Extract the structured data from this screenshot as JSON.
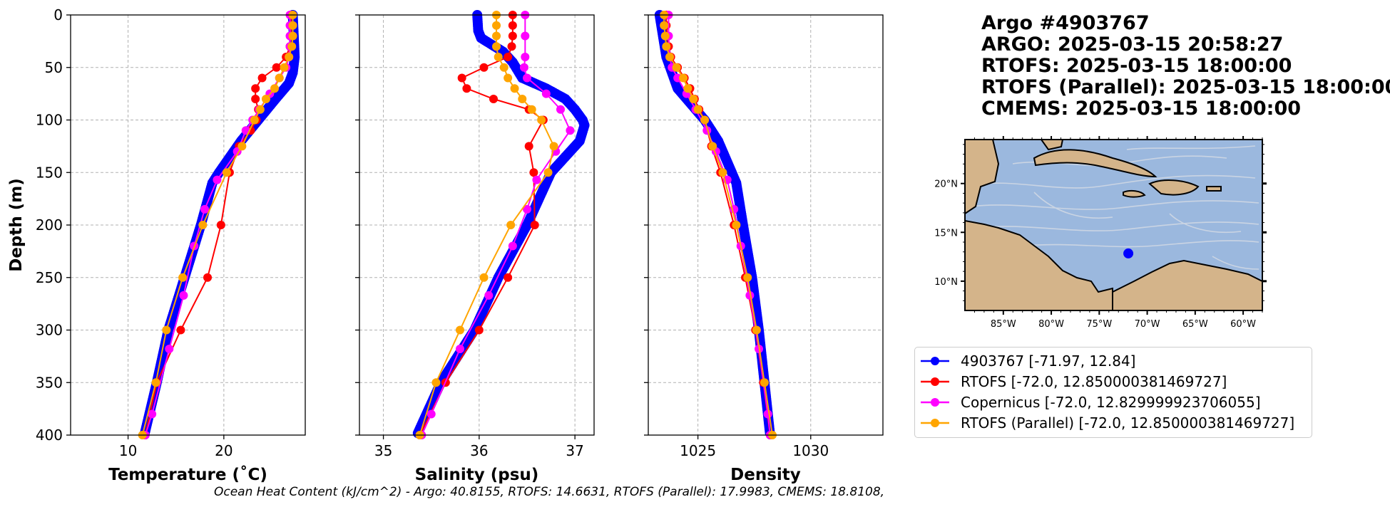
{
  "titles": [
    "Argo #4903767",
    "ARGO:  2025-03-15 20:58:27",
    "RTOFS: 2025-03-15 18:00:00",
    "RTOFS (Parallel): 2025-03-15 18:00:00",
    "CMEMS: 2025-03-15 18:00:00"
  ],
  "footer": "Ocean Heat Content (kJ/cm^2) - Argo: 40.8155,  RTOFS: 14.6631,  RTOFS (Parallel): 17.9983,  CMEMS: 18.8108,",
  "colors": {
    "argo": "#0000ff",
    "rtofs": "#ff0000",
    "copernicus": "#ff00ff",
    "parallel": "#ffa500",
    "ocean": "#9bb8de",
    "land": "#d4b48a"
  },
  "legend": [
    {
      "label": "4903767 [-71.97, 12.84]",
      "color": "#0000ff"
    },
    {
      "label": "RTOFS [-72.0, 12.850000381469727]",
      "color": "#ff0000"
    },
    {
      "label": "Copernicus [-72.0, 12.829999923706055]",
      "color": "#ff00ff"
    },
    {
      "label": "RTOFS (Parallel) [-72.0, 12.850000381469727]",
      "color": "#ffa500"
    }
  ],
  "chart_data": [
    {
      "type": "line",
      "xlabel": "Temperature (˚C)",
      "ylabel": "Depth (m)",
      "xlim": [
        4,
        28.5
      ],
      "ylim": [
        400,
        0
      ],
      "xticks": [
        10,
        20
      ],
      "yticks": [
        0,
        50,
        100,
        150,
        200,
        250,
        300,
        350,
        400
      ],
      "grid": true,
      "series": [
        {
          "name": "4903767 [-71.97, 12.84]",
          "color": "#0000ff",
          "depth": [
            0,
            20,
            40,
            55,
            65,
            80,
            100,
            120,
            150,
            160,
            200,
            250,
            300,
            350,
            400
          ],
          "values": [
            27.2,
            27.3,
            27.4,
            27.2,
            26.8,
            25.4,
            23.6,
            21.8,
            19.5,
            18.8,
            17.6,
            15.9,
            14.2,
            13.0,
            11.7
          ]
        },
        {
          "name": "RTOFS [-72.0, 12.850000381469727]",
          "color": "#ff0000",
          "depth": [
            0,
            10,
            20,
            30,
            40,
            50,
            60,
            70,
            80,
            90,
            100,
            110,
            125,
            150,
            200,
            250,
            300,
            350,
            400
          ],
          "values": [
            27.0,
            27.0,
            27.0,
            26.9,
            26.5,
            25.5,
            24.0,
            23.3,
            23.3,
            23.6,
            23.4,
            22.8,
            21.6,
            20.6,
            19.7,
            18.3,
            15.5,
            13.0,
            11.8
          ]
        },
        {
          "name": "Copernicus [-72.0, 12.829999923706055]",
          "color": "#ff00ff",
          "depth": [
            0,
            10,
            20,
            30,
            40,
            50,
            60,
            75,
            90,
            100,
            110,
            130,
            157,
            185,
            220,
            267,
            318,
            380,
            400
          ],
          "values": [
            26.9,
            26.9,
            26.9,
            26.9,
            26.8,
            26.5,
            25.8,
            24.8,
            23.7,
            23.0,
            22.3,
            21.4,
            19.3,
            18.0,
            16.9,
            15.8,
            14.3,
            12.5,
            11.8
          ]
        },
        {
          "name": "RTOFS (Parallel) [-72.0, 12.850000381469727]",
          "color": "#ffa500",
          "depth": [
            0,
            10,
            20,
            30,
            40,
            50,
            60,
            70,
            80,
            90,
            100,
            125,
            150,
            200,
            250,
            300,
            350,
            400
          ],
          "values": [
            27.2,
            27.2,
            27.2,
            27.1,
            26.8,
            26.3,
            25.8,
            25.3,
            24.4,
            23.8,
            23.2,
            21.9,
            20.3,
            17.8,
            15.7,
            14.0,
            12.9,
            11.5
          ]
        }
      ]
    },
    {
      "type": "line",
      "xlabel": "Salinity (psu)",
      "ylabel": "",
      "xlim": [
        34.75,
        37.2
      ],
      "ylim": [
        400,
        0
      ],
      "xticks": [
        35,
        36,
        37
      ],
      "yticks": [
        0,
        50,
        100,
        150,
        200,
        250,
        300,
        350,
        400
      ],
      "grid": true,
      "series": [
        {
          "name": "4903767 [-71.97, 12.84]",
          "color": "#0000ff",
          "depth": [
            0,
            15,
            22,
            35,
            45,
            60,
            70,
            80,
            90,
            100,
            105,
            120,
            135,
            150,
            200,
            250,
            300,
            350,
            400
          ],
          "values": [
            35.98,
            35.99,
            36.02,
            36.25,
            36.35,
            36.45,
            36.7,
            36.9,
            37.0,
            37.08,
            37.1,
            37.05,
            36.9,
            36.75,
            36.5,
            36.2,
            35.95,
            35.6,
            35.35
          ]
        },
        {
          "name": "RTOFS [-72.0, 12.850000381469727]",
          "color": "#ff0000",
          "depth": [
            0,
            10,
            20,
            30,
            40,
            50,
            60,
            70,
            80,
            90,
            100,
            125,
            150,
            200,
            250,
            300,
            350,
            400
          ],
          "values": [
            36.35,
            36.35,
            36.35,
            36.34,
            36.3,
            36.05,
            35.82,
            35.87,
            36.15,
            36.52,
            36.67,
            36.52,
            36.57,
            36.58,
            36.3,
            36.0,
            35.65,
            35.38
          ]
        },
        {
          "name": "Copernicus [-72.0, 12.829999923706055]",
          "color": "#ff00ff",
          "depth": [
            0,
            20,
            40,
            50,
            60,
            75,
            90,
            110,
            130,
            157,
            185,
            220,
            267,
            318,
            380,
            400
          ],
          "values": [
            36.48,
            36.48,
            36.48,
            36.47,
            36.5,
            36.7,
            36.85,
            36.95,
            36.8,
            36.6,
            36.5,
            36.35,
            36.1,
            35.8,
            35.5,
            35.4
          ]
        },
        {
          "name": "RTOFS (Parallel) [-72.0, 12.850000381469727]",
          "color": "#ffa500",
          "depth": [
            0,
            10,
            20,
            30,
            40,
            50,
            60,
            70,
            80,
            90,
            100,
            125,
            150,
            200,
            250,
            300,
            350,
            400
          ],
          "values": [
            36.18,
            36.18,
            36.18,
            36.18,
            36.2,
            36.26,
            36.3,
            36.37,
            36.45,
            36.55,
            36.65,
            36.78,
            36.72,
            36.33,
            36.05,
            35.8,
            35.55,
            35.38
          ]
        }
      ]
    },
    {
      "type": "line",
      "xlabel": "Density",
      "ylabel": "",
      "xlim": [
        1022.8,
        1033.2
      ],
      "ylim": [
        400,
        0
      ],
      "xticks": [
        1025,
        1030
      ],
      "yticks": [
        0,
        50,
        100,
        150,
        200,
        250,
        300,
        350,
        400
      ],
      "grid": true,
      "series": [
        {
          "name": "4903767 [-71.97, 12.84]",
          "color": "#0000ff",
          "depth": [
            0,
            20,
            40,
            55,
            70,
            85,
            100,
            120,
            150,
            160,
            200,
            250,
            300,
            350,
            400
          ],
          "values": [
            1023.3,
            1023.45,
            1023.6,
            1023.85,
            1024.1,
            1024.7,
            1025.3,
            1025.9,
            1026.5,
            1026.7,
            1027.0,
            1027.4,
            1027.7,
            1027.95,
            1028.2
          ]
        },
        {
          "name": "RTOFS [-72.0, 12.850000381469727]",
          "color": "#ff0000",
          "depth": [
            0,
            10,
            20,
            30,
            40,
            50,
            60,
            70,
            80,
            90,
            100,
            125,
            150,
            200,
            250,
            300,
            350,
            400
          ],
          "values": [
            1023.6,
            1023.6,
            1023.65,
            1023.7,
            1023.8,
            1024.1,
            1024.4,
            1024.65,
            1024.85,
            1025.05,
            1025.3,
            1025.6,
            1026.0,
            1026.6,
            1027.1,
            1027.55,
            1027.9,
            1028.2
          ]
        },
        {
          "name": "Copernicus [-72.0, 12.829999923706055]",
          "color": "#ff00ff",
          "depth": [
            0,
            20,
            40,
            50,
            60,
            75,
            90,
            110,
            130,
            157,
            185,
            220,
            267,
            318,
            380,
            400
          ],
          "values": [
            1023.7,
            1023.7,
            1023.75,
            1023.85,
            1024.1,
            1024.5,
            1024.9,
            1025.4,
            1025.8,
            1026.3,
            1026.6,
            1026.9,
            1027.3,
            1027.7,
            1028.1,
            1028.2
          ]
        },
        {
          "name": "RTOFS (Parallel) [-72.0, 12.850000381469727]",
          "color": "#ffa500",
          "depth": [
            0,
            10,
            20,
            30,
            40,
            50,
            60,
            70,
            80,
            90,
            100,
            125,
            150,
            200,
            250,
            300,
            350,
            400
          ],
          "values": [
            1023.5,
            1023.5,
            1023.55,
            1023.6,
            1023.75,
            1024.05,
            1024.35,
            1024.55,
            1024.8,
            1025.0,
            1025.3,
            1025.65,
            1026.1,
            1026.7,
            1027.2,
            1027.6,
            1027.95,
            1028.3
          ]
        }
      ]
    }
  ],
  "map": {
    "lon_ticks": [
      "85°W",
      "80°W",
      "75°W",
      "70°W",
      "65°W",
      "60°W"
    ],
    "lat_ticks": [
      "20°N",
      "15°N",
      "10°N"
    ],
    "marker": {
      "lon": -71.97,
      "lat": 12.84
    }
  }
}
